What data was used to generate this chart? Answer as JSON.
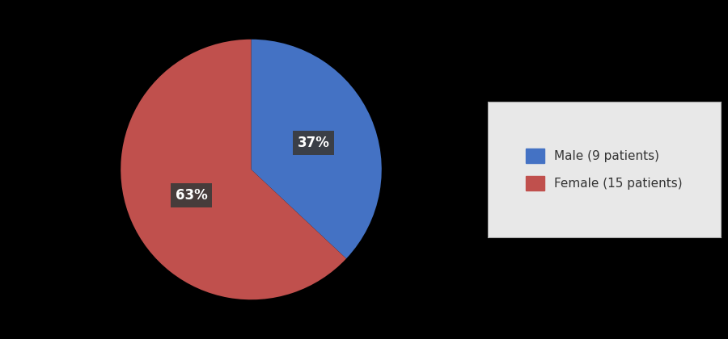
{
  "labels": [
    "Male (9 patients)",
    "Female (15 patients)"
  ],
  "values": [
    37,
    63
  ],
  "colors": [
    "#4472C4",
    "#C0504D"
  ],
  "pct_labels": [
    "37%",
    "63%"
  ],
  "background_color": "#000000",
  "legend_bg": "#e8e8e8",
  "legend_edge": "#aaaaaa",
  "text_color": "#ffffff",
  "label_box_color": "#3a3a3a",
  "figsize": [
    9.0,
    4.2
  ],
  "dpi": 100
}
